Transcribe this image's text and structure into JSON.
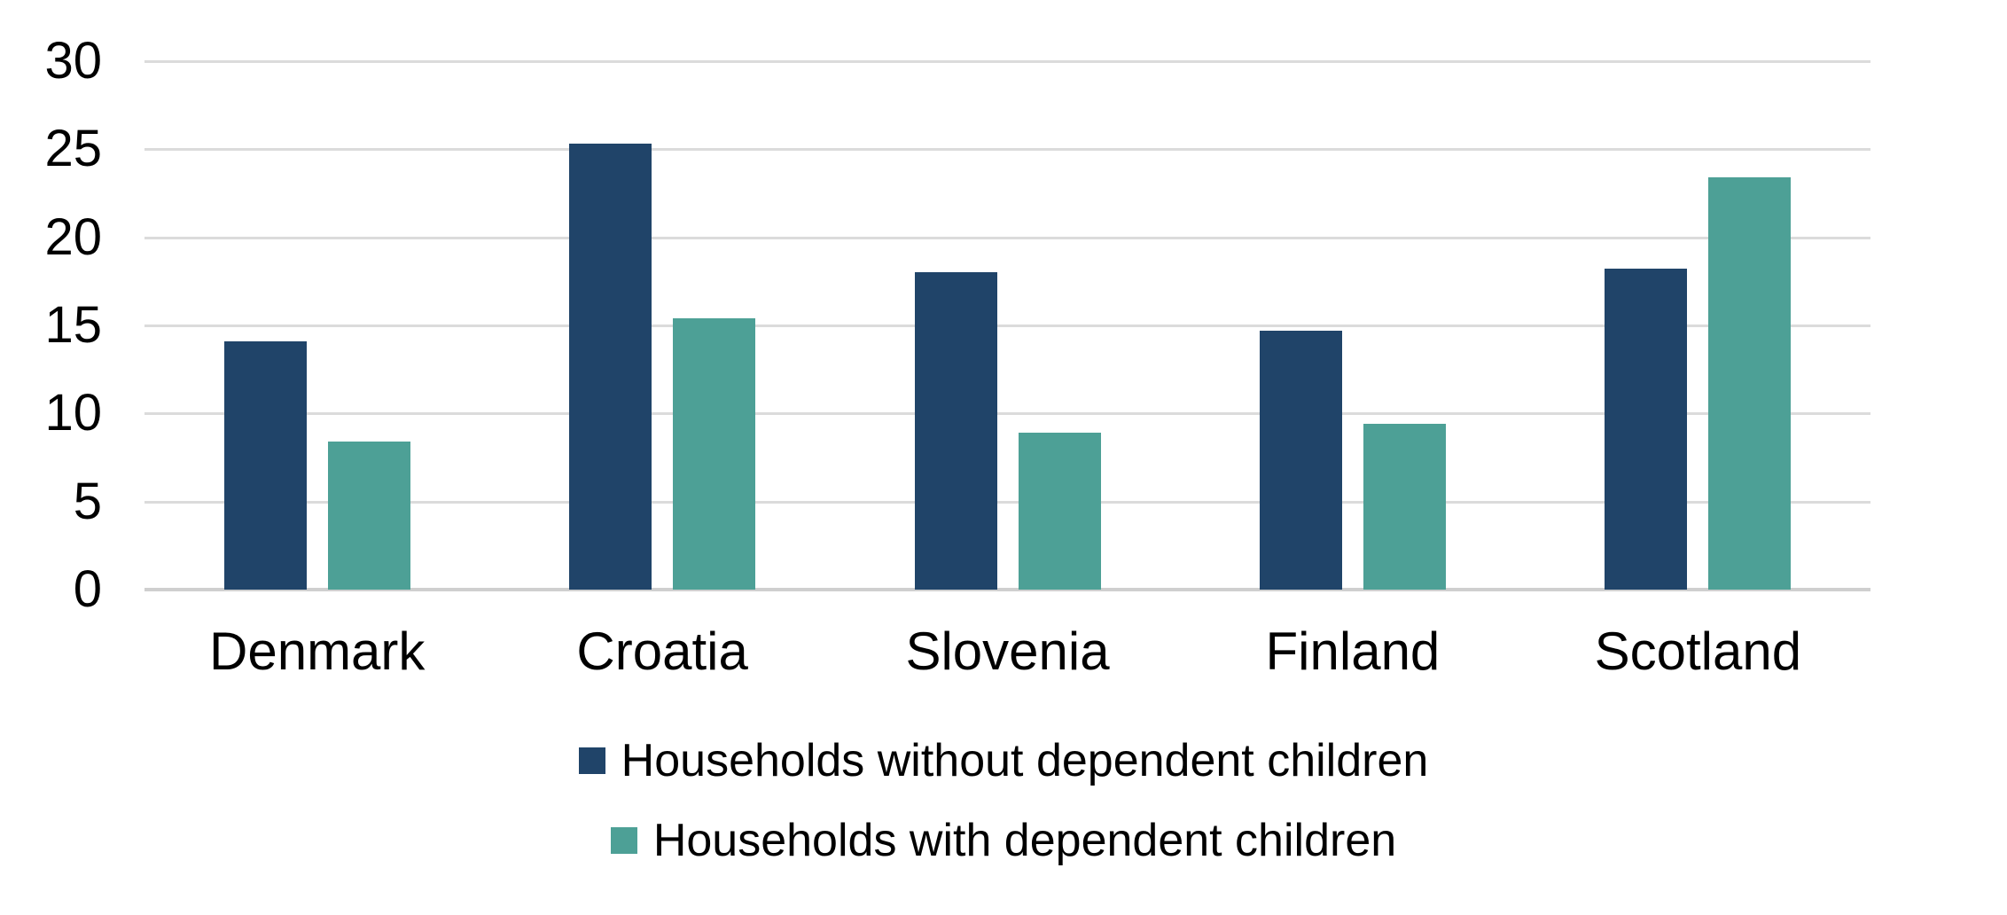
{
  "chart_data": {
    "type": "bar",
    "title": "",
    "categories": [
      "Denmark",
      "Croatia",
      "Slovenia",
      "Finland",
      "Scotland"
    ],
    "series": [
      {
        "name": "Households without dependent children",
        "color": "#204469",
        "values": [
          14.1,
          25.3,
          18.0,
          14.7,
          18.2
        ]
      },
      {
        "name": "Households with dependent children",
        "color": "#4DA096",
        "values": [
          8.4,
          15.4,
          8.9,
          9.4,
          23.4
        ]
      }
    ],
    "y_axis": {
      "min": 0,
      "max": 30,
      "step": 5,
      "tick_labels": [
        "0",
        "5",
        "10",
        "15",
        "20",
        "25",
        "30"
      ]
    },
    "xlabel": "",
    "ylabel": "",
    "grid": "horizontal",
    "legend_position": "bottom-center",
    "colors": {
      "grid_line": "#DBDBDB",
      "axis_line": "#CFCFCF",
      "text": "#000000",
      "background": "#FFFFFF"
    }
  }
}
